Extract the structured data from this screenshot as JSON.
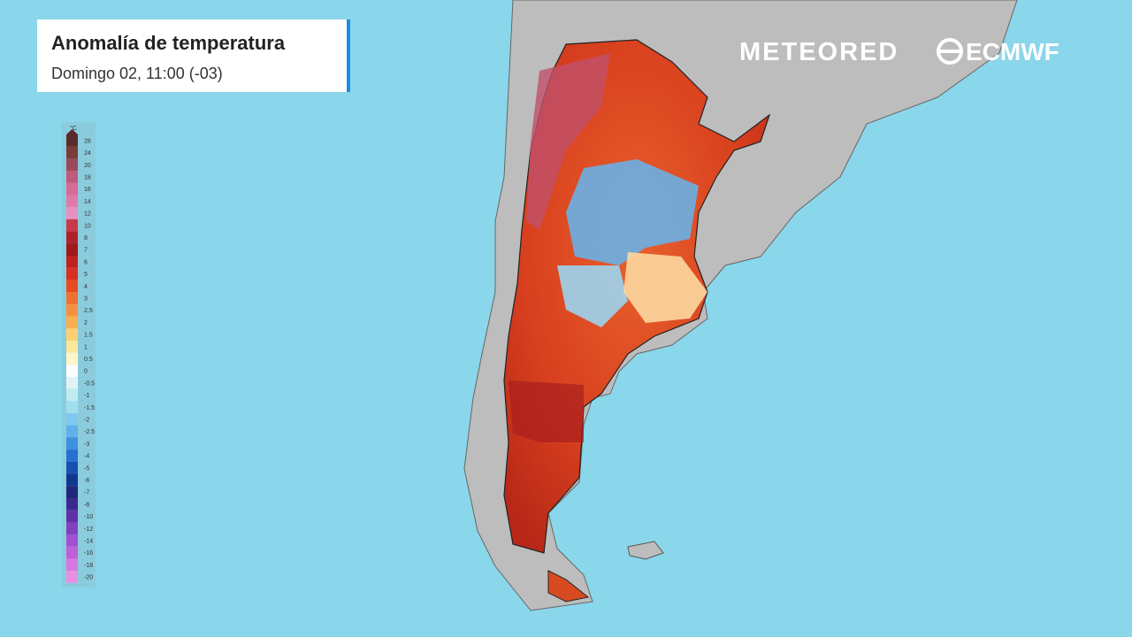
{
  "header": {
    "title": "Anomalía de temperatura",
    "subtitle": "Domingo 02, 11:00 (-03)"
  },
  "brand": {
    "meteored": "METEORED",
    "ecmwf": "ECMWF"
  },
  "legend": {
    "unit": "°C",
    "labels": [
      28,
      24,
      20,
      18,
      16,
      14,
      12,
      10,
      8,
      7,
      6,
      5,
      4,
      3,
      2.5,
      2,
      1.5,
      1,
      0.5,
      0,
      -0.5,
      -1,
      -1.5,
      -2,
      -2.5,
      -3,
      -4,
      -5,
      -6,
      -7,
      -8,
      -10,
      -12,
      -14,
      -16,
      -18,
      -20
    ],
    "colors": [
      "#5a2b2b",
      "#7a3b3b",
      "#9b4a5a",
      "#c05a7a",
      "#d86a98",
      "#e07aaa",
      "#e890c0",
      "#c83a4a",
      "#b0202a",
      "#a01818",
      "#c02020",
      "#d83020",
      "#e84a20",
      "#f07030",
      "#f49040",
      "#f8b050",
      "#fcd070",
      "#fde89a",
      "#fff5c8",
      "#ffffff",
      "#e0f4f8",
      "#c0ecf0",
      "#a0e0ec",
      "#80c8f0",
      "#60b0ec",
      "#4090e0",
      "#2870d0",
      "#1850b0",
      "#103890",
      "#202878",
      "#3a2a90",
      "#6030a8",
      "#8040c0",
      "#a050d0",
      "#c060d8",
      "#d878e0",
      "#e890e0"
    ]
  }
}
